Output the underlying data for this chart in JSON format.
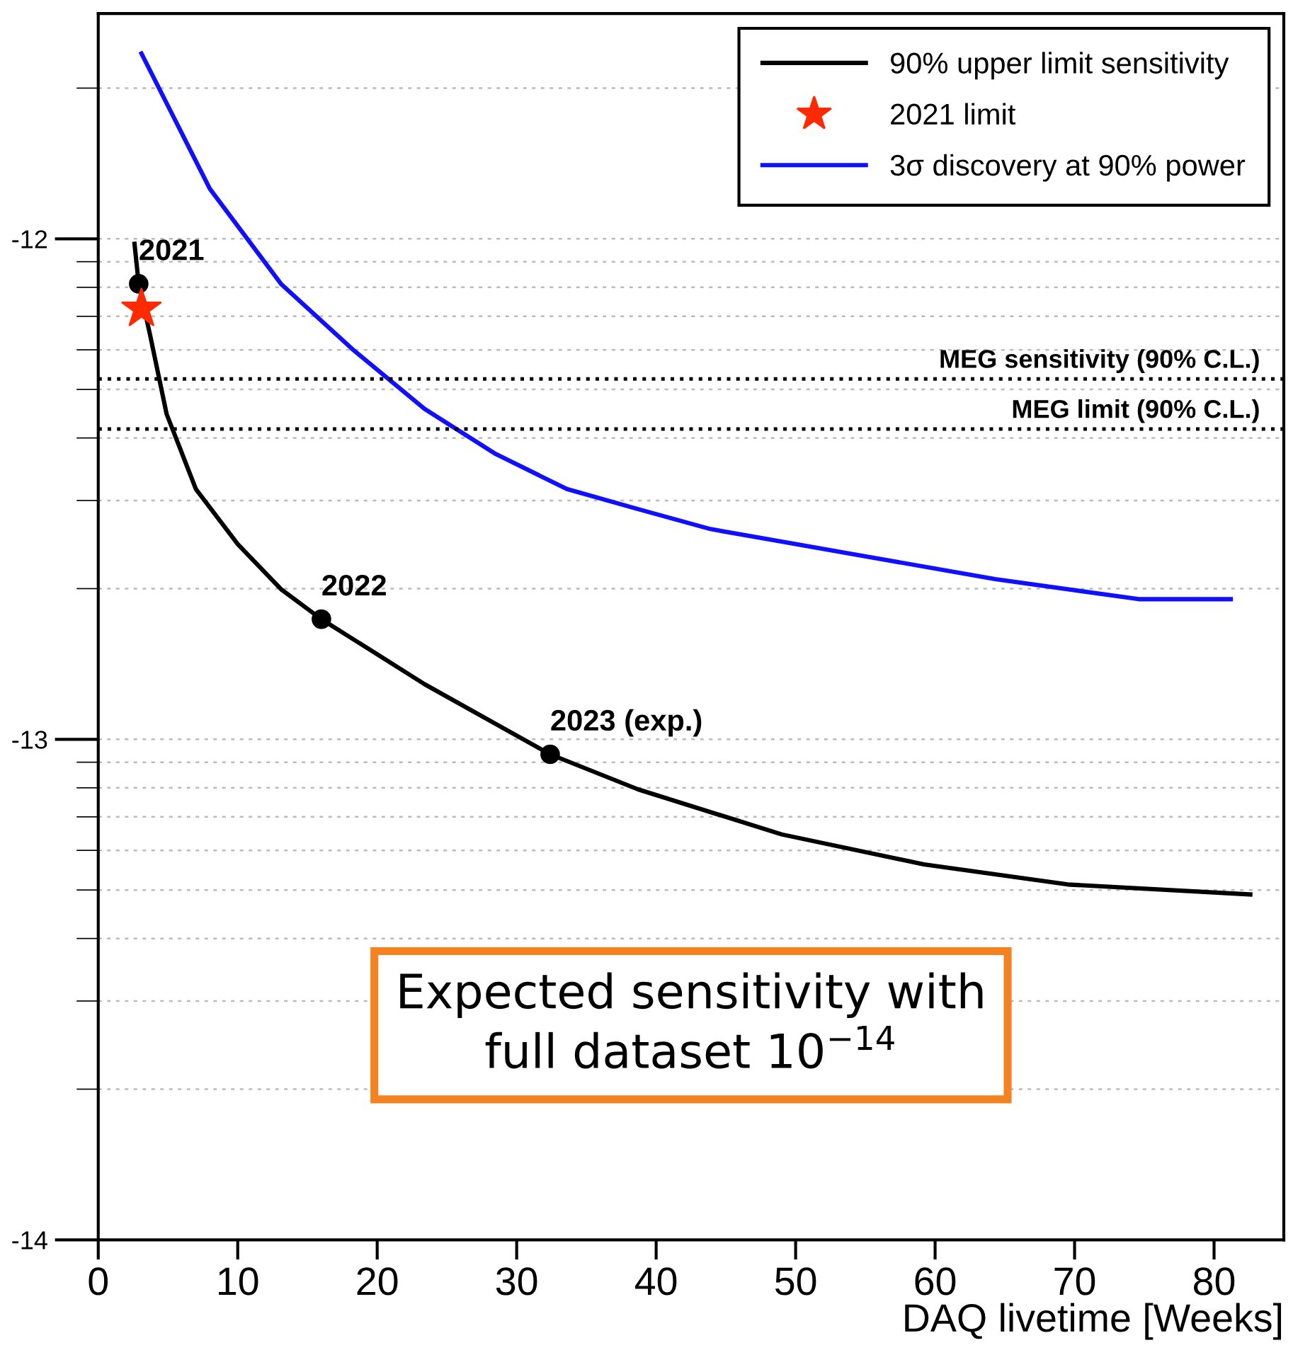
{
  "chart_data": {
    "type": "line",
    "xlabel": "DAQ livetime [Weeks]",
    "xlim": [
      0,
      85
    ],
    "ylim": [
      -14,
      -11.55
    ],
    "xticks": [
      0,
      10,
      20,
      30,
      40,
      50,
      60,
      70,
      80
    ],
    "yticks": [
      -14,
      -13,
      -12
    ],
    "grid": "y",
    "legend": "top right",
    "series": [
      {
        "name": "90% upper limit sensitivity",
        "color": "#000000",
        "marker": "none",
        "x": [
          2.6,
          2.9,
          3.7,
          4.9,
          7.0,
          10.0,
          13.1,
          16.0,
          23.4,
          32.4,
          38.7,
          49.0,
          59.2,
          69.5,
          82.6
        ],
        "values": [
          -12.01,
          -12.09,
          -12.19,
          -12.35,
          -12.5,
          -12.61,
          -12.7,
          -12.76,
          -12.89,
          -13.03,
          -13.1,
          -13.19,
          -13.25,
          -13.29,
          -13.31
        ]
      },
      {
        "type": "scatter",
        "color": "#000000",
        "marker": "circle",
        "x": [
          2.9,
          16.0,
          32.4
        ],
        "values": [
          -12.09,
          -12.76,
          -13.03
        ]
      },
      {
        "name": "2021 limit",
        "type": "scatter",
        "color": "#ff2a00",
        "marker": "star",
        "x": [
          3.1
        ],
        "values": [
          -12.14
        ]
      },
      {
        "name": "3σ discovery at 90% power",
        "color": "#1010ff",
        "marker": "none",
        "x": [
          3.1,
          8.0,
          13.1,
          18.2,
          23.4,
          28.5,
          33.6,
          38.7,
          43.9,
          54.1,
          64.3,
          74.6,
          81.2
        ],
        "values": [
          -11.63,
          -11.9,
          -12.09,
          -12.22,
          -12.34,
          -12.43,
          -12.5,
          -12.54,
          -12.58,
          -12.63,
          -12.68,
          -12.72,
          -12.72
        ]
      }
    ],
    "ref_lines": [
      {
        "axis": "y",
        "value": -12.28,
        "label": "MEG sensitivity (90% C.L.)",
        "color": "#000000",
        "line_style": "dotted"
      },
      {
        "axis": "y",
        "value": -12.38,
        "label": "MEG limit (90% C.L.)",
        "color": "#000000",
        "line_style": "dotted"
      }
    ],
    "annotations": [
      {
        "text": "2021",
        "x": 2.9,
        "y": -12.09
      },
      {
        "text": "2022",
        "x": 16.0,
        "y": -12.76
      },
      {
        "text": "2023 (exp.)",
        "x": 32.4,
        "y": -13.03
      },
      "Expected sensitivity with\nfull dataset 10$^{−14}$"
    ]
  }
}
